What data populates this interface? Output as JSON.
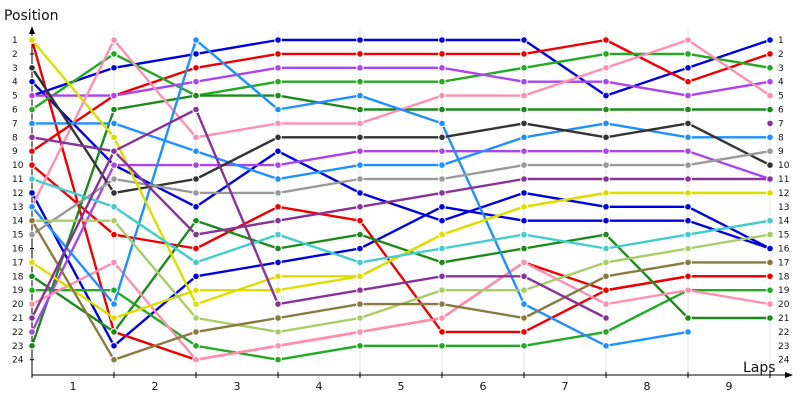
{
  "chart_data": {
    "type": "line",
    "title": "",
    "ylabel": "Position",
    "xlabel": "Laps",
    "ylim": [
      1,
      24
    ],
    "y_inverted": true,
    "x_ticks": [
      "1",
      "2",
      "3",
      "4",
      "5",
      "6",
      "7",
      "8",
      "9"
    ],
    "y_ticks_left": [
      "1",
      "2",
      "3",
      "4",
      "5",
      "6",
      "7",
      "8",
      "9",
      "10",
      "11",
      "12",
      "13",
      "14",
      "15",
      "16",
      "17",
      "18",
      "19",
      "20",
      "21",
      "22",
      "23",
      "24"
    ],
    "y_ticks_right": [
      "1",
      "2",
      "3",
      "4",
      "5",
      "6",
      "7",
      "8",
      "9",
      "10",
      "11",
      "12",
      "13",
      "14",
      "15",
      "16",
      "17",
      "18",
      "19",
      "20",
      "21",
      "22",
      "23",
      "24"
    ],
    "x": [
      0,
      1,
      2,
      3,
      4,
      5,
      6,
      7,
      8,
      9
    ],
    "series": [
      {
        "color": "#0000dd",
        "values": [
          4,
          10,
          13,
          9,
          12,
          14,
          12,
          13,
          13,
          16
        ]
      },
      {
        "color": "#0000dd",
        "values": [
          12,
          23,
          18,
          17,
          16,
          13,
          14,
          14,
          14,
          16
        ]
      },
      {
        "color": "#0000dd",
        "values": [
          5,
          3,
          2,
          1,
          1,
          1,
          1,
          5,
          3,
          1
        ]
      },
      {
        "color": "#ee0000",
        "values": [
          9,
          5,
          3,
          2,
          2,
          2,
          2,
          1,
          4,
          2
        ]
      },
      {
        "color": "#ee0000",
        "values": [
          10,
          15,
          16,
          13,
          14,
          22,
          22,
          19,
          18,
          18
        ]
      },
      {
        "color": "#ee0000",
        "values": [
          1,
          22,
          24,
          23,
          22,
          21,
          17,
          19,
          18,
          18
        ]
      },
      {
        "color": "#22aa22",
        "values": [
          6,
          2,
          5,
          4,
          4,
          4,
          3,
          2,
          2,
          3
        ]
      },
      {
        "color": "#22aa22",
        "values": [
          19,
          19,
          23,
          24,
          23,
          23,
          23,
          22,
          19,
          19
        ]
      },
      {
        "color": "#1b8a1b",
        "values": [
          23,
          6,
          5,
          5,
          6,
          6,
          6,
          6,
          6,
          6
        ]
      },
      {
        "color": "#1b8a1b",
        "values": [
          18,
          22,
          14,
          16,
          15,
          17,
          16,
          15,
          21,
          21
        ]
      },
      {
        "color": "#aa44ee",
        "values": [
          5,
          5,
          4,
          3,
          3,
          3,
          4,
          4,
          5,
          4
        ]
      },
      {
        "color": "#aa44ee",
        "values": [
          22,
          10,
          10,
          10,
          9,
          9,
          9,
          9,
          9,
          11
        ]
      },
      {
        "color": "#ff8fb0",
        "values": [
          13,
          1,
          8,
          7,
          7,
          5,
          5,
          3,
          1,
          5
        ]
      },
      {
        "color": "#ff8fb0",
        "values": [
          20,
          17,
          24,
          23,
          22,
          21,
          17,
          20,
          19,
          20
        ]
      },
      {
        "color": "#1e90ff",
        "values": [
          7,
          7,
          9,
          11,
          10,
          10,
          8,
          7,
          8,
          8
        ]
      },
      {
        "color": "#1e90ff",
        "values": [
          13,
          20,
          1,
          6,
          5,
          7,
          20,
          23,
          22,
          null
        ]
      },
      {
        "color": "#333333",
        "values": [
          3,
          12,
          11,
          8,
          8,
          8,
          7,
          8,
          7,
          10
        ]
      },
      {
        "color": "#999999",
        "values": [
          15,
          11,
          12,
          12,
          11,
          11,
          10,
          10,
          10,
          9
        ]
      },
      {
        "color": "#dddd00",
        "values": [
          1,
          8,
          20,
          18,
          18,
          15,
          13,
          12,
          12,
          12
        ]
      },
      {
        "color": "#dddd00",
        "values": [
          17,
          21,
          19,
          19,
          18,
          15,
          13,
          12,
          12,
          12
        ]
      },
      {
        "color": "#44cccc",
        "values": [
          11,
          13,
          17,
          15,
          17,
          16,
          15,
          16,
          15,
          14
        ]
      },
      {
        "color": "#aacc66",
        "values": [
          14,
          14,
          21,
          22,
          21,
          19,
          19,
          17,
          16,
          15
        ]
      },
      {
        "color": "#8a7a40",
        "values": [
          14,
          24,
          22,
          21,
          20,
          20,
          21,
          18,
          17,
          17
        ]
      },
      {
        "color": "#883399",
        "values": [
          8,
          9,
          6,
          20,
          19,
          18,
          18,
          21,
          null,
          7
        ]
      },
      {
        "color": "#883399",
        "values": [
          21,
          9,
          15,
          14,
          13,
          12,
          11,
          11,
          11,
          11
        ]
      }
    ]
  }
}
